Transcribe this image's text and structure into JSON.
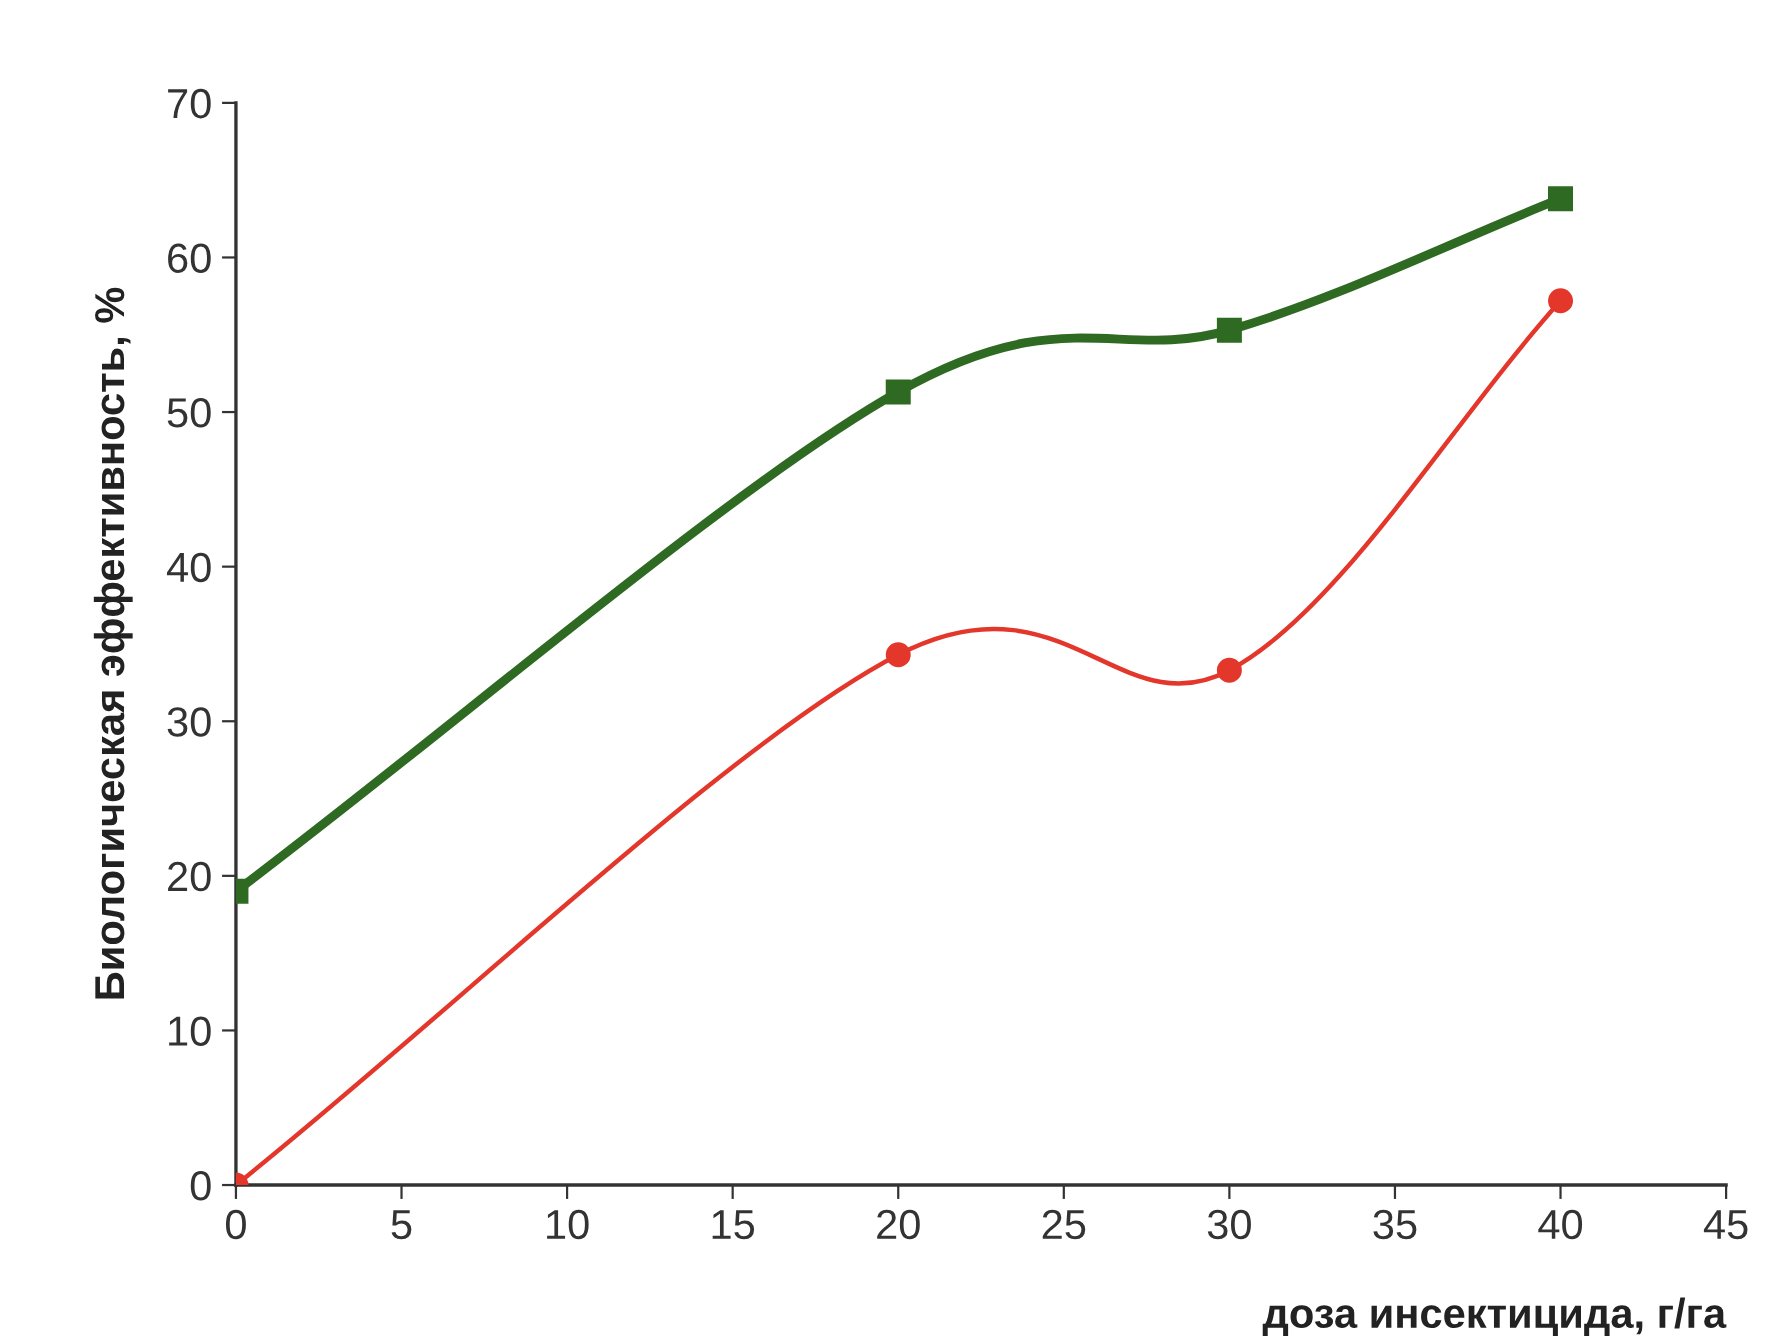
{
  "chart_data": {
    "type": "line",
    "xlabel": "доза инсектицида, г/га",
    "ylabel": "Биологическая эффективность, %",
    "x": [
      0,
      20,
      30,
      40
    ],
    "series": [
      {
        "color": "#2f6a22",
        "values": [
          19,
          51.3,
          55.3,
          63.8
        ],
        "marker": "square"
      },
      {
        "color": "#e4372c",
        "values": [
          0,
          34.3,
          33.3,
          57.2
        ],
        "marker": "circle"
      }
    ],
    "xlim": [
      0,
      45
    ],
    "xticks": [
      0,
      5,
      10,
      15,
      20,
      25,
      30,
      35,
      40,
      45
    ],
    "ylim": [
      0,
      70
    ],
    "yticks": [
      0,
      10,
      20,
      30,
      40,
      50,
      60,
      70
    ],
    "grid": false,
    "legend": false,
    "line_style": "solid"
  }
}
